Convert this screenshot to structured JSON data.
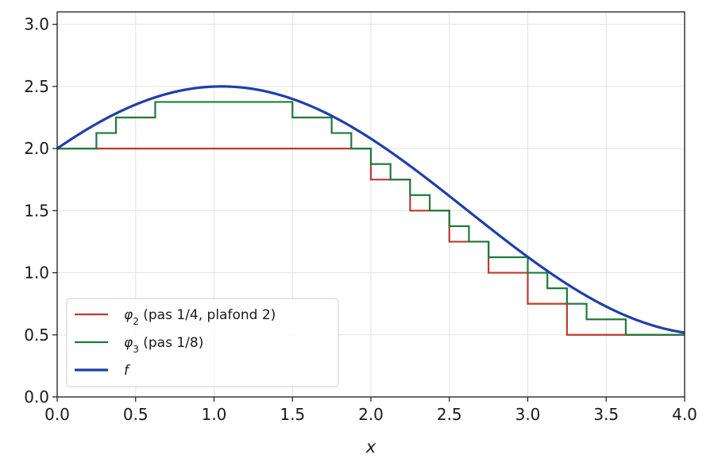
{
  "chart_data": {
    "type": "line",
    "xlabel": "x",
    "ylabel": "",
    "title": "",
    "xlim": [
      0,
      4
    ],
    "ylim": [
      0,
      3.1
    ],
    "xticks": [
      "0.0",
      "0.5",
      "1.0",
      "1.5",
      "2.0",
      "2.5",
      "3.0",
      "3.5",
      "4.0"
    ],
    "yticks": [
      "0.0",
      "0.5",
      "1.0",
      "1.5",
      "2.0",
      "2.5",
      "3.0"
    ],
    "grid": true,
    "legend_position": "bottom-left",
    "function": "f(x) = 1.5 + sin(x + pi/6)",
    "series": [
      {
        "name": "φ₂ (pas 1/4, plafond 2)",
        "legend_symbol": "φ",
        "legend_subscript": "2",
        "legend_rest": " (pas 1/4, plafond 2)",
        "color": "#c0392b",
        "kind": "step",
        "step": 0.25,
        "cap": 2
      },
      {
        "name": "φ₃ (pas 1/8)",
        "legend_symbol": "φ",
        "legend_subscript": "3",
        "legend_rest": " (pas 1/8)",
        "color": "#1e7b3c",
        "kind": "step",
        "step": 0.125
      },
      {
        "name": "f",
        "legend_symbol": "f",
        "legend_subscript": "",
        "legend_rest": "",
        "color": "#1f3fa8",
        "kind": "curve"
      }
    ]
  }
}
